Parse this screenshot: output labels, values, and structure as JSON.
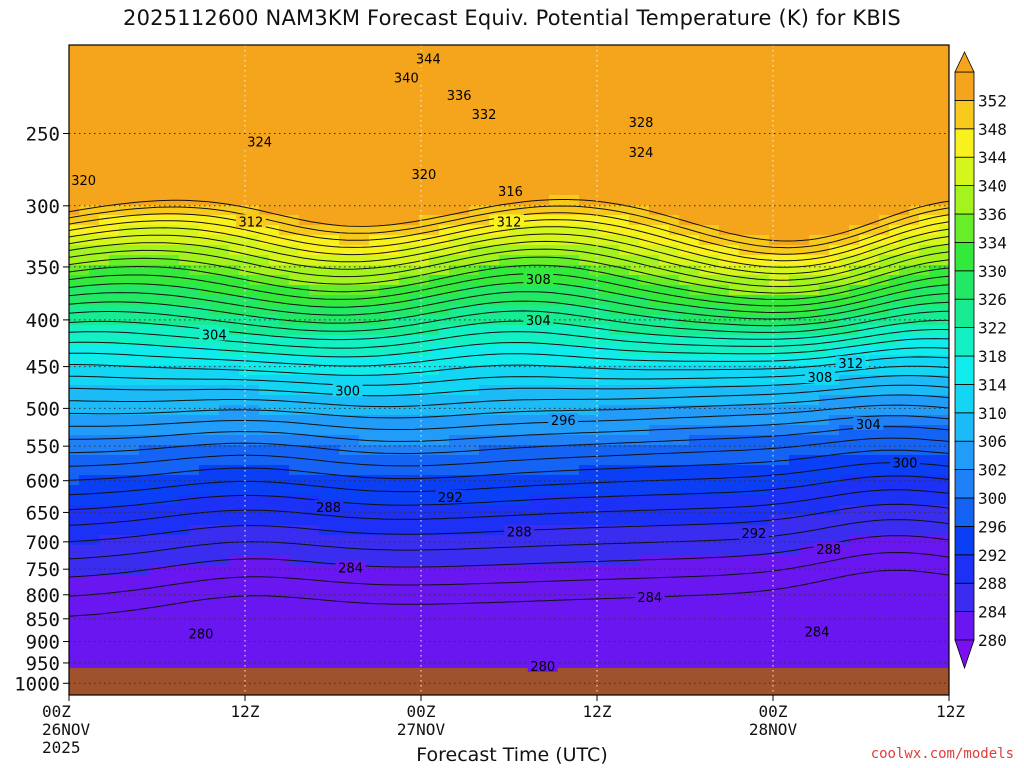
{
  "title": "2025112600 NAM3KM Forecast Equiv. Potential Temperature (K) for KBIS",
  "watermark": "coolwx.com/models",
  "chart_data": {
    "type": "heatmap",
    "title": "2025112600 NAM3KM Forecast Equiv. Potential Temperature (K) for KBIS",
    "xlabel": "Forecast Time (UTC)",
    "ylabel": "",
    "x_ticks": [
      {
        "hour": 0,
        "lines": [
          "00Z",
          "26NOV",
          "2025"
        ]
      },
      {
        "hour": 12,
        "lines": [
          "12Z"
        ]
      },
      {
        "hour": 24,
        "lines": [
          "00Z",
          "27NOV"
        ]
      },
      {
        "hour": 36,
        "lines": [
          "12Z"
        ]
      },
      {
        "hour": 48,
        "lines": [
          "00Z",
          "28NOV"
        ]
      },
      {
        "hour": 60,
        "lines": [
          "12Z"
        ]
      }
    ],
    "xlim": [
      0,
      60
    ],
    "y_ticks": [
      250,
      300,
      350,
      400,
      450,
      500,
      550,
      600,
      650,
      700,
      750,
      800,
      850,
      900,
      950,
      1000
    ],
    "ylim_hpa": [
      200,
      1030
    ],
    "ground_pressure_hpa": 962,
    "colorbar": {
      "levels": [
        280,
        284,
        288,
        292,
        296,
        300,
        302,
        306,
        310,
        314,
        318,
        322,
        326,
        330,
        334,
        336,
        340,
        344,
        348,
        352
      ],
      "colors": [
        "#6a16f0",
        "#3a2df0",
        "#1d30f5",
        "#0a3ff5",
        "#1563f5",
        "#1f80f7",
        "#229cf9",
        "#1cbaf6",
        "#13d6f4",
        "#10ecec",
        "#13f0c4",
        "#18ec92",
        "#22e866",
        "#33ea3c",
        "#68ee28",
        "#a4f31f",
        "#d6f51d",
        "#f8f11d",
        "#f8c91d",
        "#f5a51b"
      ],
      "extend": "both"
    },
    "contour_interval_K": 2,
    "contour_labels": [
      {
        "v": 344,
        "h": 24.5,
        "p": 207
      },
      {
        "v": 340,
        "h": 23.0,
        "p": 217
      },
      {
        "v": 336,
        "h": 26.6,
        "p": 227
      },
      {
        "v": 332,
        "h": 28.3,
        "p": 238
      },
      {
        "v": 328,
        "h": 39.0,
        "p": 243
      },
      {
        "v": 324,
        "h": 13.0,
        "p": 255
      },
      {
        "v": 324,
        "h": 39.0,
        "p": 262
      },
      {
        "v": 320,
        "h": 1.0,
        "p": 281
      },
      {
        "v": 320,
        "h": 24.2,
        "p": 277
      },
      {
        "v": 316,
        "h": 30.1,
        "p": 289
      },
      {
        "v": 312,
        "h": 12.4,
        "p": 312
      },
      {
        "v": 312,
        "h": 30.0,
        "p": 312
      },
      {
        "v": 308,
        "h": 32.0,
        "p": 361
      },
      {
        "v": 308,
        "h": 51.2,
        "p": 462
      },
      {
        "v": 312,
        "h": 53.3,
        "p": 446
      },
      {
        "v": 304,
        "h": 9.9,
        "p": 415
      },
      {
        "v": 304,
        "h": 32.0,
        "p": 400
      },
      {
        "v": 304,
        "h": 54.5,
        "p": 520
      },
      {
        "v": 300,
        "h": 19.0,
        "p": 478
      },
      {
        "v": 300,
        "h": 57.0,
        "p": 573
      },
      {
        "v": 296,
        "h": 33.7,
        "p": 515
      },
      {
        "v": 292,
        "h": 26.0,
        "p": 625
      },
      {
        "v": 292,
        "h": 46.7,
        "p": 685
      },
      {
        "v": 288,
        "h": 17.7,
        "p": 641
      },
      {
        "v": 288,
        "h": 30.7,
        "p": 682
      },
      {
        "v": 288,
        "h": 51.8,
        "p": 713
      },
      {
        "v": 284,
        "h": 19.2,
        "p": 747
      },
      {
        "v": 284,
        "h": 39.6,
        "p": 804
      },
      {
        "v": 284,
        "h": 51.0,
        "p": 878
      },
      {
        "v": 280,
        "h": 9.0,
        "p": 882
      },
      {
        "v": 280,
        "h": 32.3,
        "p": 957
      }
    ]
  }
}
